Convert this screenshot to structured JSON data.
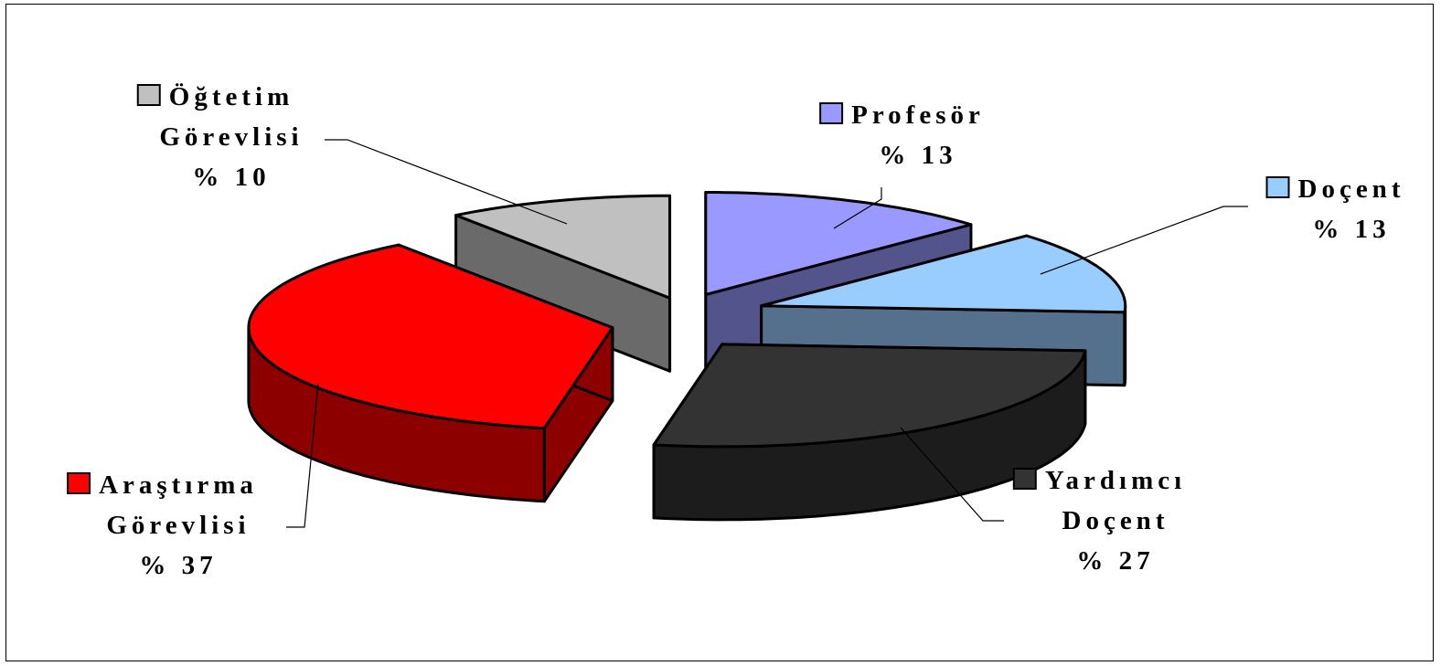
{
  "chart_data": {
    "type": "pie",
    "style": "3d-exploded",
    "title": "",
    "legend_keys": "inline-with-labels",
    "slices": [
      {
        "label_lines": [
          "Profesör"
        ],
        "percent_label": "% 13",
        "value": 13,
        "color": "#9999ff"
      },
      {
        "label_lines": [
          "Doçent"
        ],
        "percent_label": "% 13",
        "value": 13,
        "color": "#99ccff"
      },
      {
        "label_lines": [
          "Yardımcı",
          "Doçent"
        ],
        "percent_label": "% 27",
        "value": 27,
        "color": "#333333"
      },
      {
        "label_lines": [
          "Araştırma",
          "Görevlisi"
        ],
        "percent_label": "% 37",
        "value": 37,
        "color": "#ff0000"
      },
      {
        "label_lines": [
          "Öğtetim",
          "Görevlisi"
        ],
        "percent_label": "% 10",
        "value": 10,
        "color": "#c0c0c0"
      }
    ]
  }
}
